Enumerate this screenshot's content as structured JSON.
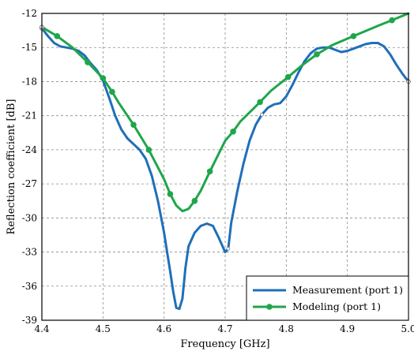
{
  "chart_data": {
    "type": "line",
    "title": "",
    "xlabel": "Frequency [GHz]",
    "ylabel": "Reflection coefficient [dB]",
    "xlim": [
      4.4,
      5.0
    ],
    "ylim": [
      -39,
      -12
    ],
    "xticks": [
      "4.4",
      "4.5",
      "4.6",
      "4.7",
      "4.8",
      "4.9",
      "5.0"
    ],
    "yticks": [
      "-12",
      "-15",
      "-18",
      "-21",
      "-24",
      "-27",
      "-30",
      "-33",
      "-36",
      "-39"
    ],
    "grid": true,
    "legend_position": "bottom-right",
    "series": [
      {
        "name": "Measurement (port 1)",
        "color": "#1f6fb8",
        "marker": "none",
        "x": [
          4.4,
          4.41,
          4.42,
          4.43,
          4.44,
          4.45,
          4.46,
          4.47,
          4.48,
          4.49,
          4.5,
          4.51,
          4.52,
          4.53,
          4.54,
          4.55,
          4.56,
          4.57,
          4.58,
          4.59,
          4.6,
          4.605,
          4.61,
          4.615,
          4.62,
          4.625,
          4.63,
          4.635,
          4.64,
          4.65,
          4.66,
          4.67,
          4.68,
          4.69,
          4.7,
          4.705,
          4.71,
          4.72,
          4.73,
          4.74,
          4.75,
          4.76,
          4.77,
          4.78,
          4.79,
          4.8,
          4.81,
          4.82,
          4.83,
          4.84,
          4.85,
          4.86,
          4.87,
          4.88,
          4.89,
          4.9,
          4.91,
          4.92,
          4.93,
          4.94,
          4.95,
          4.96,
          4.97,
          4.98,
          4.99,
          5.0
        ],
        "y": [
          -13.3,
          -14.0,
          -14.6,
          -14.9,
          -15.0,
          -15.1,
          -15.3,
          -15.7,
          -16.4,
          -17.0,
          -17.9,
          -19.4,
          -21.0,
          -22.2,
          -23.0,
          -23.5,
          -24.0,
          -24.8,
          -26.3,
          -28.5,
          -31.3,
          -33.0,
          -34.7,
          -36.5,
          -37.9,
          -38.0,
          -37.1,
          -34.4,
          -32.5,
          -31.3,
          -30.7,
          -30.5,
          -30.7,
          -31.8,
          -33.0,
          -32.7,
          -30.4,
          -27.6,
          -25.2,
          -23.2,
          -21.8,
          -20.9,
          -20.3,
          -20.0,
          -19.9,
          -19.3,
          -18.3,
          -17.2,
          -16.2,
          -15.5,
          -15.1,
          -15.0,
          -15.0,
          -15.2,
          -15.4,
          -15.3,
          -15.1,
          -14.9,
          -14.7,
          -14.6,
          -14.6,
          -14.9,
          -15.6,
          -16.5,
          -17.3,
          -18.0
        ]
      },
      {
        "name": "Modeling (port 1)",
        "color": "#1fa64b",
        "marker": "circle",
        "x": [
          4.4,
          4.425,
          4.45,
          4.475,
          4.5,
          4.515,
          4.525,
          4.55,
          4.575,
          4.6,
          4.61,
          4.62,
          4.63,
          4.64,
          4.65,
          4.66,
          4.675,
          4.7,
          4.713,
          4.725,
          4.757,
          4.775,
          4.803,
          4.825,
          4.85,
          4.875,
          4.91,
          4.95,
          4.973,
          5.0
        ],
        "y": [
          -13.2,
          -14.0,
          -15.0,
          -16.3,
          -17.7,
          -18.9,
          -19.8,
          -21.8,
          -24.0,
          -26.6,
          -27.9,
          -28.9,
          -29.4,
          -29.2,
          -28.5,
          -27.6,
          -25.9,
          -23.2,
          -22.4,
          -21.5,
          -19.8,
          -18.8,
          -17.6,
          -16.6,
          -15.6,
          -14.8,
          -14.0,
          -13.1,
          -12.6,
          -12.0
        ]
      }
    ],
    "marker_points": {
      "Modeling (port 1)": [
        4.425,
        4.475,
        4.5,
        4.515,
        4.55,
        4.575,
        4.61,
        4.65,
        4.675,
        4.713,
        4.757,
        4.803,
        4.85,
        4.91,
        4.973
      ]
    }
  }
}
